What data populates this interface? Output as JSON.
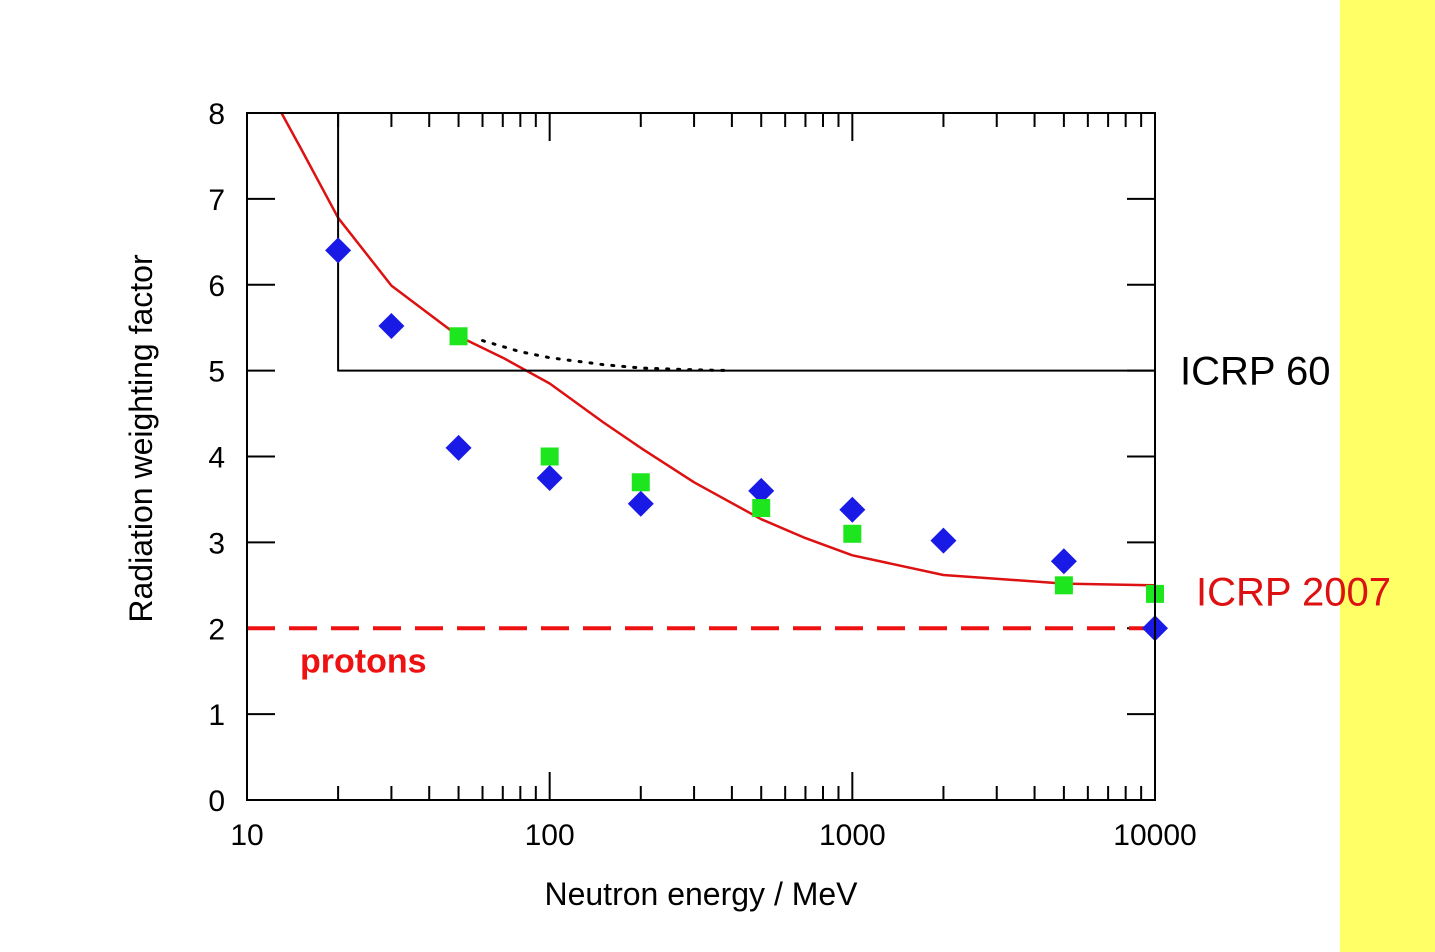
{
  "colors": {
    "background": "#ffff66",
    "panel": "#ffffff",
    "axis": "#000000",
    "icrp2007": "#dd1111",
    "protons": "#ee1111",
    "diamond_series": "#1a1ae6",
    "square_series": "#1ee61e"
  },
  "chart_data": {
    "type": "scatter",
    "title": "",
    "xlabel": "Neutron energy / MeV",
    "ylabel": "Radiation weighting factor",
    "xscale": "log",
    "xlim": [
      10,
      10000
    ],
    "ylim": [
      0,
      8
    ],
    "xticks": [
      10,
      100,
      1000,
      10000
    ],
    "xtick_labels": [
      "10",
      "100",
      "1000",
      "10000"
    ],
    "yticks": [
      0,
      1,
      2,
      3,
      4,
      5,
      6,
      7,
      8
    ],
    "ytick_labels": [
      "0",
      "1",
      "2",
      "3",
      "4",
      "5",
      "6",
      "7",
      "8"
    ],
    "grid": false,
    "series": [
      {
        "kind": "points",
        "marker": "diamond",
        "color": "#1a1ae6",
        "x": [
          20,
          30,
          50,
          100,
          200,
          500,
          1000,
          2000,
          5000,
          10000
        ],
        "y": [
          6.4,
          5.52,
          4.1,
          3.75,
          3.45,
          3.6,
          3.38,
          3.02,
          2.78,
          2.0
        ]
      },
      {
        "kind": "points",
        "marker": "square",
        "color": "#1ee61e",
        "x": [
          50,
          100,
          200,
          500,
          1000,
          5000,
          10000
        ],
        "y": [
          5.4,
          4.0,
          3.7,
          3.4,
          3.1,
          2.5,
          2.4
        ]
      },
      {
        "name": "ICRP 2007",
        "kind": "line",
        "style": "solid",
        "color": "#dd1111",
        "x": [
          13,
          15,
          20,
          30,
          50,
          70,
          100,
          150,
          200,
          300,
          500,
          700,
          1000,
          2000,
          5000,
          10000
        ],
        "y": [
          8.0,
          7.6,
          6.78,
          5.99,
          5.4,
          5.15,
          4.85,
          4.4,
          4.1,
          3.7,
          3.27,
          3.05,
          2.85,
          2.62,
          2.52,
          2.5
        ]
      },
      {
        "name": "ICRP 60",
        "kind": "line",
        "style": "solid",
        "color": "#000000",
        "x": [
          20,
          20,
          10000
        ],
        "y": [
          8,
          5,
          5
        ]
      },
      {
        "kind": "line",
        "style": "dotted",
        "color": "#000000",
        "x": [
          60,
          80,
          100,
          150,
          200,
          300,
          400
        ],
        "y": [
          5.35,
          5.22,
          5.15,
          5.07,
          5.03,
          5.01,
          5.0
        ]
      },
      {
        "name": "protons",
        "kind": "line",
        "style": "dashed",
        "color": "#ee1111",
        "x": [
          10,
          10000
        ],
        "y": [
          2,
          2
        ]
      }
    ],
    "annotations": [
      {
        "key": "icrp60",
        "text": "ICRP 60",
        "color": "#000000"
      },
      {
        "key": "icrp2007",
        "text": "ICRP 2007",
        "color": "#dd1111"
      },
      {
        "key": "protons",
        "text": "protons",
        "color": "#ee1111"
      }
    ]
  }
}
